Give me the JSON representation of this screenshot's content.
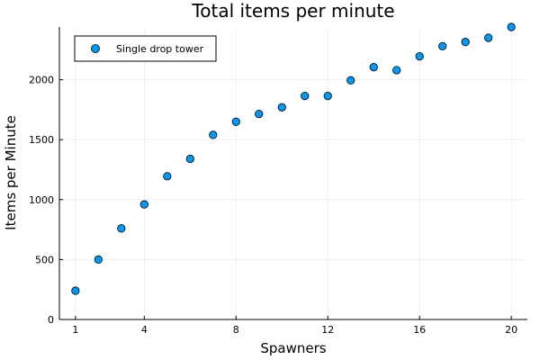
{
  "chart_data": {
    "type": "scatter",
    "title": "Total items per minute",
    "xlabel": "Spawners",
    "ylabel": "Items per Minute",
    "xlim": [
      0.3,
      20.7
    ],
    "ylim": [
      0,
      2440
    ],
    "xticks": [
      1,
      4,
      8,
      12,
      16,
      20
    ],
    "yticks": [
      0,
      500,
      1000,
      1500,
      2000
    ],
    "grid": true,
    "legend_position": "top-left",
    "series": [
      {
        "name": "Single drop tower",
        "color": "#009af9",
        "points": [
          {
            "x": 1,
            "y": 240
          },
          {
            "x": 2,
            "y": 500
          },
          {
            "x": 3,
            "y": 760
          },
          {
            "x": 4,
            "y": 960
          },
          {
            "x": 5,
            "y": 1195
          },
          {
            "x": 6,
            "y": 1340
          },
          {
            "x": 7,
            "y": 1540
          },
          {
            "x": 8,
            "y": 1650
          },
          {
            "x": 9,
            "y": 1715
          },
          {
            "x": 10,
            "y": 1770
          },
          {
            "x": 11,
            "y": 1865
          },
          {
            "x": 12,
            "y": 1865
          },
          {
            "x": 13,
            "y": 1995
          },
          {
            "x": 14,
            "y": 2105
          },
          {
            "x": 15,
            "y": 2080
          },
          {
            "x": 16,
            "y": 2195
          },
          {
            "x": 17,
            "y": 2280
          },
          {
            "x": 18,
            "y": 2315
          },
          {
            "x": 19,
            "y": 2350
          },
          {
            "x": 20,
            "y": 2440
          }
        ]
      }
    ]
  }
}
